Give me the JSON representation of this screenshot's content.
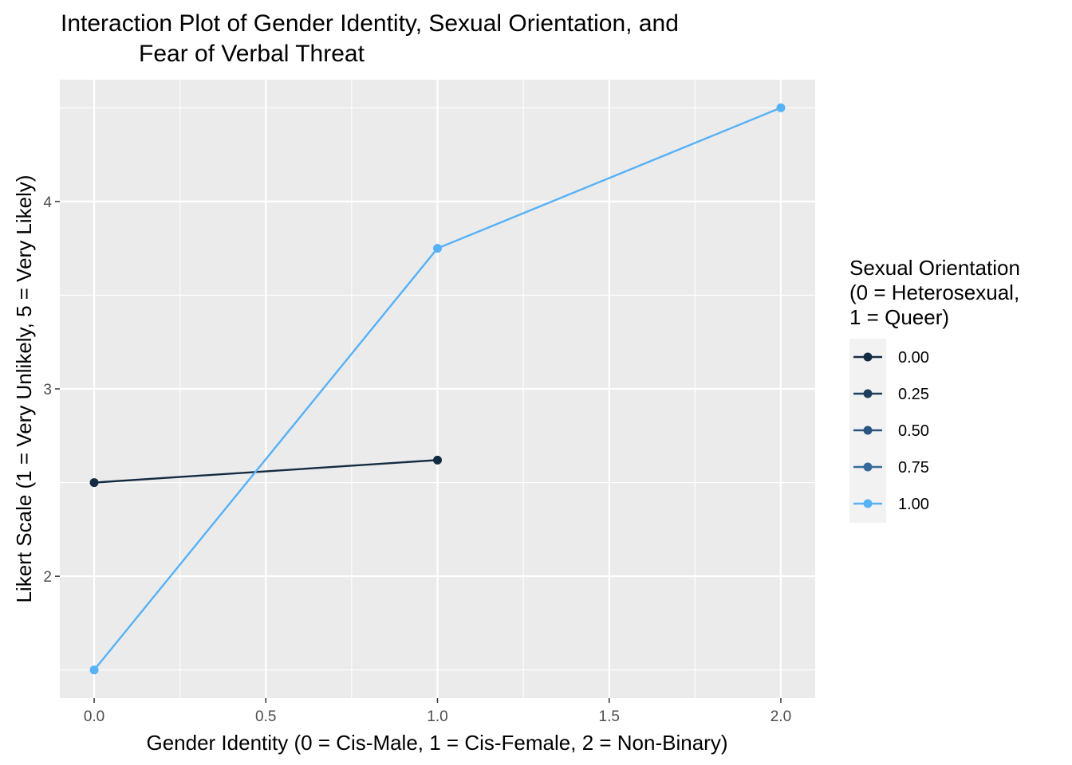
{
  "chart_data": {
    "type": "line",
    "title": [
      "Interaction Plot of Gender Identity, Sexual Orientation, and",
      "Fear of Verbal Threat"
    ],
    "xlabel": "Gender Identity (0 = Cis-Male, 1 = Cis-Female, 2 = Non-Binary)",
    "ylabel": "Likert Scale (1 = Very Unlikely, 5 = Very Likely)",
    "xlim": [
      -0.1,
      2.1
    ],
    "ylim": [
      1.35,
      4.65
    ],
    "x_ticks": [
      0.0,
      0.5,
      1.0,
      1.5,
      2.0
    ],
    "x_tick_labels": [
      "0.0",
      "0.5",
      "1.0",
      "1.5",
      "2.0"
    ],
    "y_ticks": [
      2,
      3,
      4
    ],
    "y_tick_labels": [
      "2",
      "3",
      "4"
    ],
    "grid": true,
    "legend": {
      "title": [
        "Sexual Orientation",
        "(0 = Heterosexual,",
        "1 = Queer)"
      ],
      "position": "right",
      "entries": [
        {
          "label": "0.00",
          "color": "#132b43"
        },
        {
          "label": "0.25",
          "color": "#1d3f5e"
        },
        {
          "label": "0.50",
          "color": "#28557d"
        },
        {
          "label": "0.75",
          "color": "#336a9b"
        },
        {
          "label": "1.00",
          "color": "#56b1f7"
        }
      ]
    },
    "series": [
      {
        "name": "0.00",
        "color": "#132b43",
        "x": [
          0,
          1
        ],
        "y": [
          2.5,
          2.62
        ]
      },
      {
        "name": "1.00",
        "color": "#56b1f7",
        "x": [
          0,
          1,
          2
        ],
        "y": [
          1.5,
          3.75,
          4.5
        ]
      }
    ]
  }
}
